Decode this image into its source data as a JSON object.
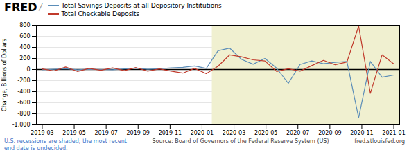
{
  "chart_data": {
    "type": "line",
    "title": "FRED",
    "annotations": [
      "/",
      "U.S. recessions are shaded; the most recent\nend date is undecided.",
      "Source: Board of Governors of the Federal Reserve System (US)",
      "fred.stlouisfed.org"
    ],
    "ylabel": "Change, Billions of Dollars",
    "series": [
      {
        "name": "Total Savings Deposits at all Depository Institutions",
        "color": "#5b8db8",
        "values": [
          -5,
          5,
          15,
          -5,
          5,
          0,
          -5,
          10,
          25,
          5,
          15,
          30,
          40,
          65,
          20,
          340,
          385,
          185,
          95,
          200,
          25,
          -250,
          90,
          155,
          105,
          130,
          145,
          -870,
          145,
          -140,
          -100
        ]
      },
      {
        "name": "Total Checkable Deposits",
        "color": "#c0392b",
        "values": [
          10,
          -25,
          45,
          -35,
          20,
          -15,
          30,
          -20,
          35,
          -30,
          10,
          -30,
          -65,
          20,
          -75,
          60,
          265,
          230,
          175,
          155,
          -35,
          15,
          -30,
          70,
          165,
          85,
          135,
          785,
          -430,
          265,
          100
        ]
      }
    ],
    "xlim": [
      -0.5,
      30.5
    ],
    "xticks": [
      {
        "value": 0,
        "label": "2019-03"
      },
      {
        "value": 2.727272727272727,
        "label": "2019-05"
      },
      {
        "value": 5.454545454545454,
        "label": "2019-07"
      },
      {
        "value": 8.181818181818182,
        "label": "2019-09"
      },
      {
        "value": 10.909090909090908,
        "label": "2019-11"
      },
      {
        "value": 13.636363636363637,
        "label": "2020-01"
      },
      {
        "value": 16.363636363636363,
        "label": "2020-03"
      },
      {
        "value": 19.09090909090909,
        "label": "2020-05"
      },
      {
        "value": 21.818181818181817,
        "label": "2020-07"
      },
      {
        "value": 24.545454545454547,
        "label": "2020-09"
      },
      {
        "value": 27.272727272727273,
        "label": "2020-11"
      },
      {
        "value": 30,
        "label": "2021-01"
      }
    ],
    "ylim": [
      -1000,
      800
    ],
    "yticks": [
      {
        "value": -1000,
        "label": "-1,000"
      },
      -800,
      -600,
      -400,
      -200,
      0,
      200,
      400,
      600,
      800
    ],
    "hlines": [
      0
    ],
    "shaded_span": {
      "x": [
        14.5,
        31
      ],
      "color": "#f0f0d0"
    },
    "grid": true,
    "legend": "upper left"
  }
}
